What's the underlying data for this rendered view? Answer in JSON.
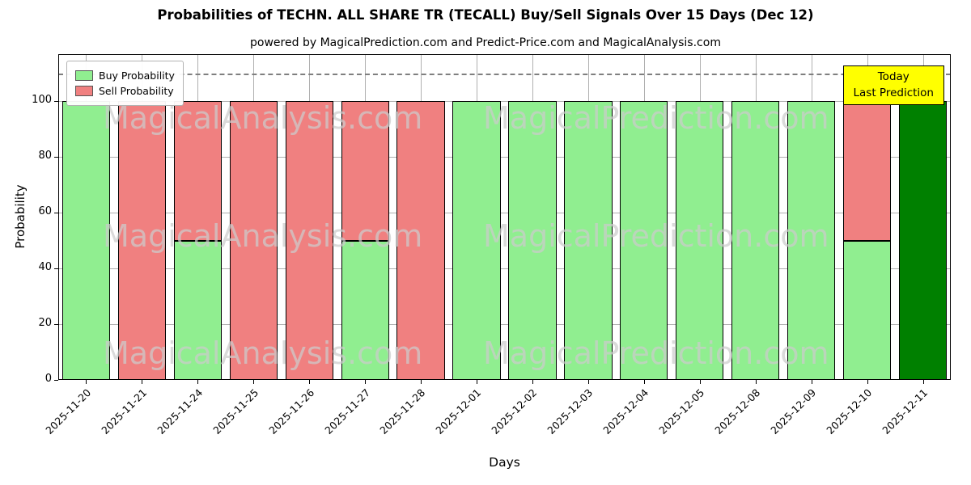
{
  "title": "Probabilities of TECHN. ALL SHARE TR (TECALL) Buy/Sell Signals Over 15 Days (Dec 12)",
  "subtitle": "powered by MagicalPrediction.com and Predict-Price.com and MagicalAnalysis.com",
  "axes": {
    "x_label": "Days",
    "y_label": "Probability",
    "y_ticks": [
      0,
      20,
      40,
      60,
      80,
      100
    ],
    "dashed_line_y": 110
  },
  "legend": [
    {
      "label": "Buy Probability",
      "color": "#90ee90"
    },
    {
      "label": "Sell Probability",
      "color": "#f08080"
    }
  ],
  "annotation": {
    "line1": "Today",
    "line2": "Last Prediction",
    "bg": "#ffff00"
  },
  "watermarks": {
    "left": "MagicalAnalysis.com",
    "right": "MagicalPrediction.com"
  },
  "chart_data": {
    "type": "bar",
    "stacked": true,
    "title": "Probabilities of TECHN. ALL SHARE TR (TECALL) Buy/Sell Signals Over 15 Days (Dec 12)",
    "xlabel": "Days",
    "ylabel": "Probability",
    "ylim": [
      0,
      117
    ],
    "grid": true,
    "legend_position": "upper left",
    "categories": [
      "2025-11-20",
      "2025-11-21",
      "2025-11-24",
      "2025-11-25",
      "2025-11-26",
      "2025-11-27",
      "2025-11-28",
      "2025-12-01",
      "2025-12-02",
      "2025-12-03",
      "2025-12-04",
      "2025-12-05",
      "2025-12-08",
      "2025-12-09",
      "2025-12-10",
      "2025-12-11"
    ],
    "series": [
      {
        "name": "Buy Probability",
        "color": "#90ee90",
        "values": [
          100,
          0,
          50,
          0,
          0,
          50,
          0,
          100,
          100,
          100,
          100,
          100,
          100,
          100,
          50,
          100
        ]
      },
      {
        "name": "Sell Probability",
        "color": "#f08080",
        "values": [
          0,
          100,
          50,
          100,
          100,
          50,
          100,
          0,
          0,
          0,
          0,
          0,
          0,
          0,
          50,
          0
        ]
      }
    ],
    "today_index": 15,
    "today_color": "#008000",
    "dashed_reference_line": 110
  }
}
